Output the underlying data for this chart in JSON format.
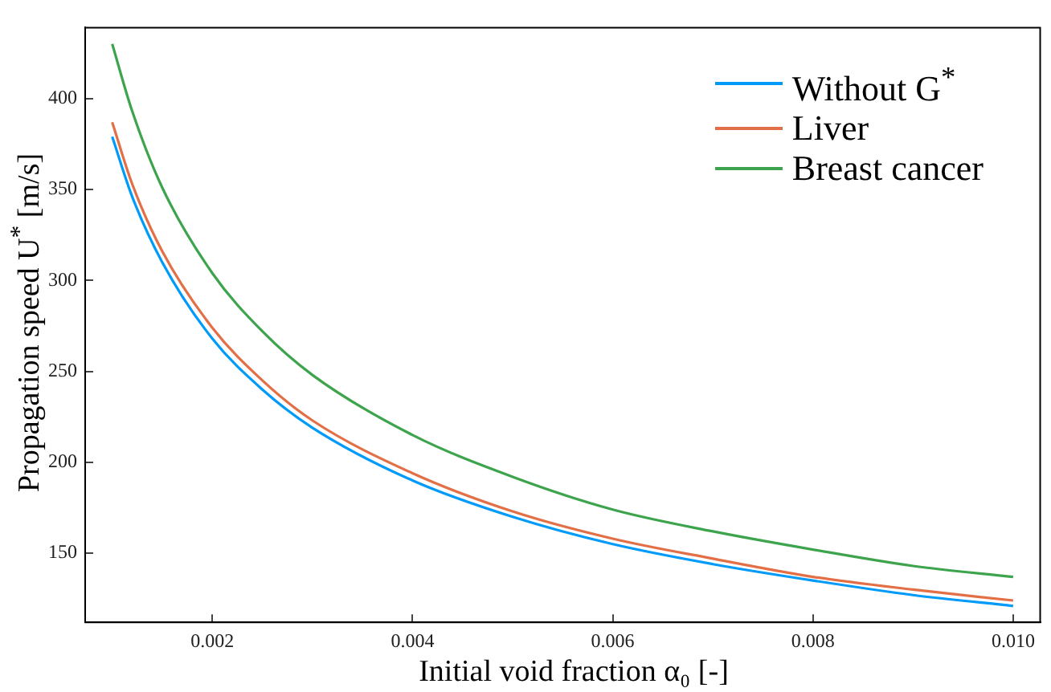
{
  "chart_data": {
    "type": "line",
    "xlabel": "Initial void fraction α₀ [-]",
    "ylabel": "Propagation speed U$^{*}$ [m/s]",
    "xlim": [
      0.00073,
      0.01027
    ],
    "ylim": [
      112,
      439
    ],
    "xticks": [
      0.002,
      0.004,
      0.006,
      0.008,
      {
        "value": 0.01,
        "label": "0.010"
      }
    ],
    "yticks": [
      150,
      200,
      250,
      300,
      350,
      400
    ],
    "grid": false,
    "legend": "top right",
    "marker": "none",
    "line_style": "solid",
    "series": [
      {
        "name": "Without G$^{*}$",
        "color": "#009af9",
        "x": [
          0.001,
          0.0012,
          0.0015,
          0.002,
          0.0025,
          0.003,
          0.004,
          0.005,
          0.006,
          0.007,
          0.008,
          0.009,
          0.01
        ],
        "values": [
          379,
          346,
          310,
          268,
          240,
          219,
          190,
          170,
          155,
          144,
          135,
          127,
          121
        ]
      },
      {
        "name": "Liver",
        "color": "#e26f46",
        "x": [
          0.001,
          0.0012,
          0.0015,
          0.002,
          0.0025,
          0.003,
          0.004,
          0.005,
          0.006,
          0.007,
          0.008,
          0.009,
          0.01
        ],
        "values": [
          387,
          353,
          316,
          274,
          245,
          223,
          194,
          173,
          158,
          147,
          137,
          130,
          124
        ]
      },
      {
        "name": "Breast cancer",
        "color": "#3da44d",
        "x": [
          0.001,
          0.0012,
          0.0015,
          0.002,
          0.0025,
          0.003,
          0.004,
          0.005,
          0.006,
          0.007,
          0.008,
          0.009,
          0.01
        ],
        "values": [
          430,
          393,
          351,
          304,
          272,
          248,
          215,
          192,
          174,
          162,
          152,
          143,
          137
        ]
      }
    ]
  }
}
